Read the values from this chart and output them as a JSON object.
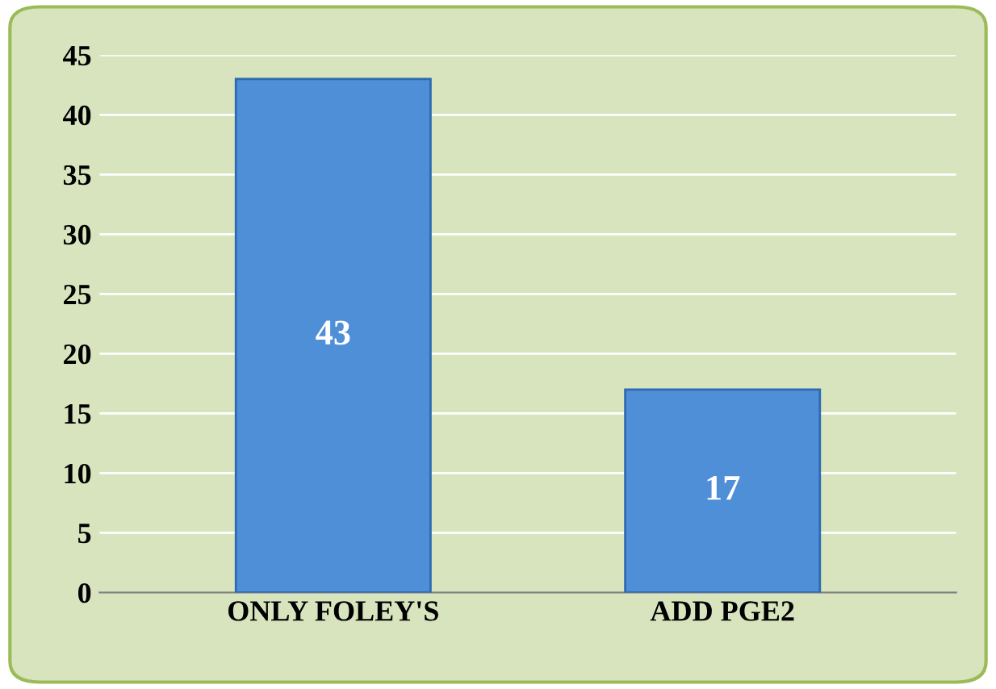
{
  "chart_data": {
    "type": "bar",
    "categories": [
      "ONLY FOLEY'S",
      "ADD PGE2"
    ],
    "values": [
      43,
      17
    ],
    "color": "#4f8fd8",
    "ylim": [
      0,
      45
    ],
    "yticks": [
      0,
      5,
      10,
      15,
      20,
      25,
      30,
      35,
      40,
      45
    ],
    "grid": "y",
    "data_labels": true
  }
}
